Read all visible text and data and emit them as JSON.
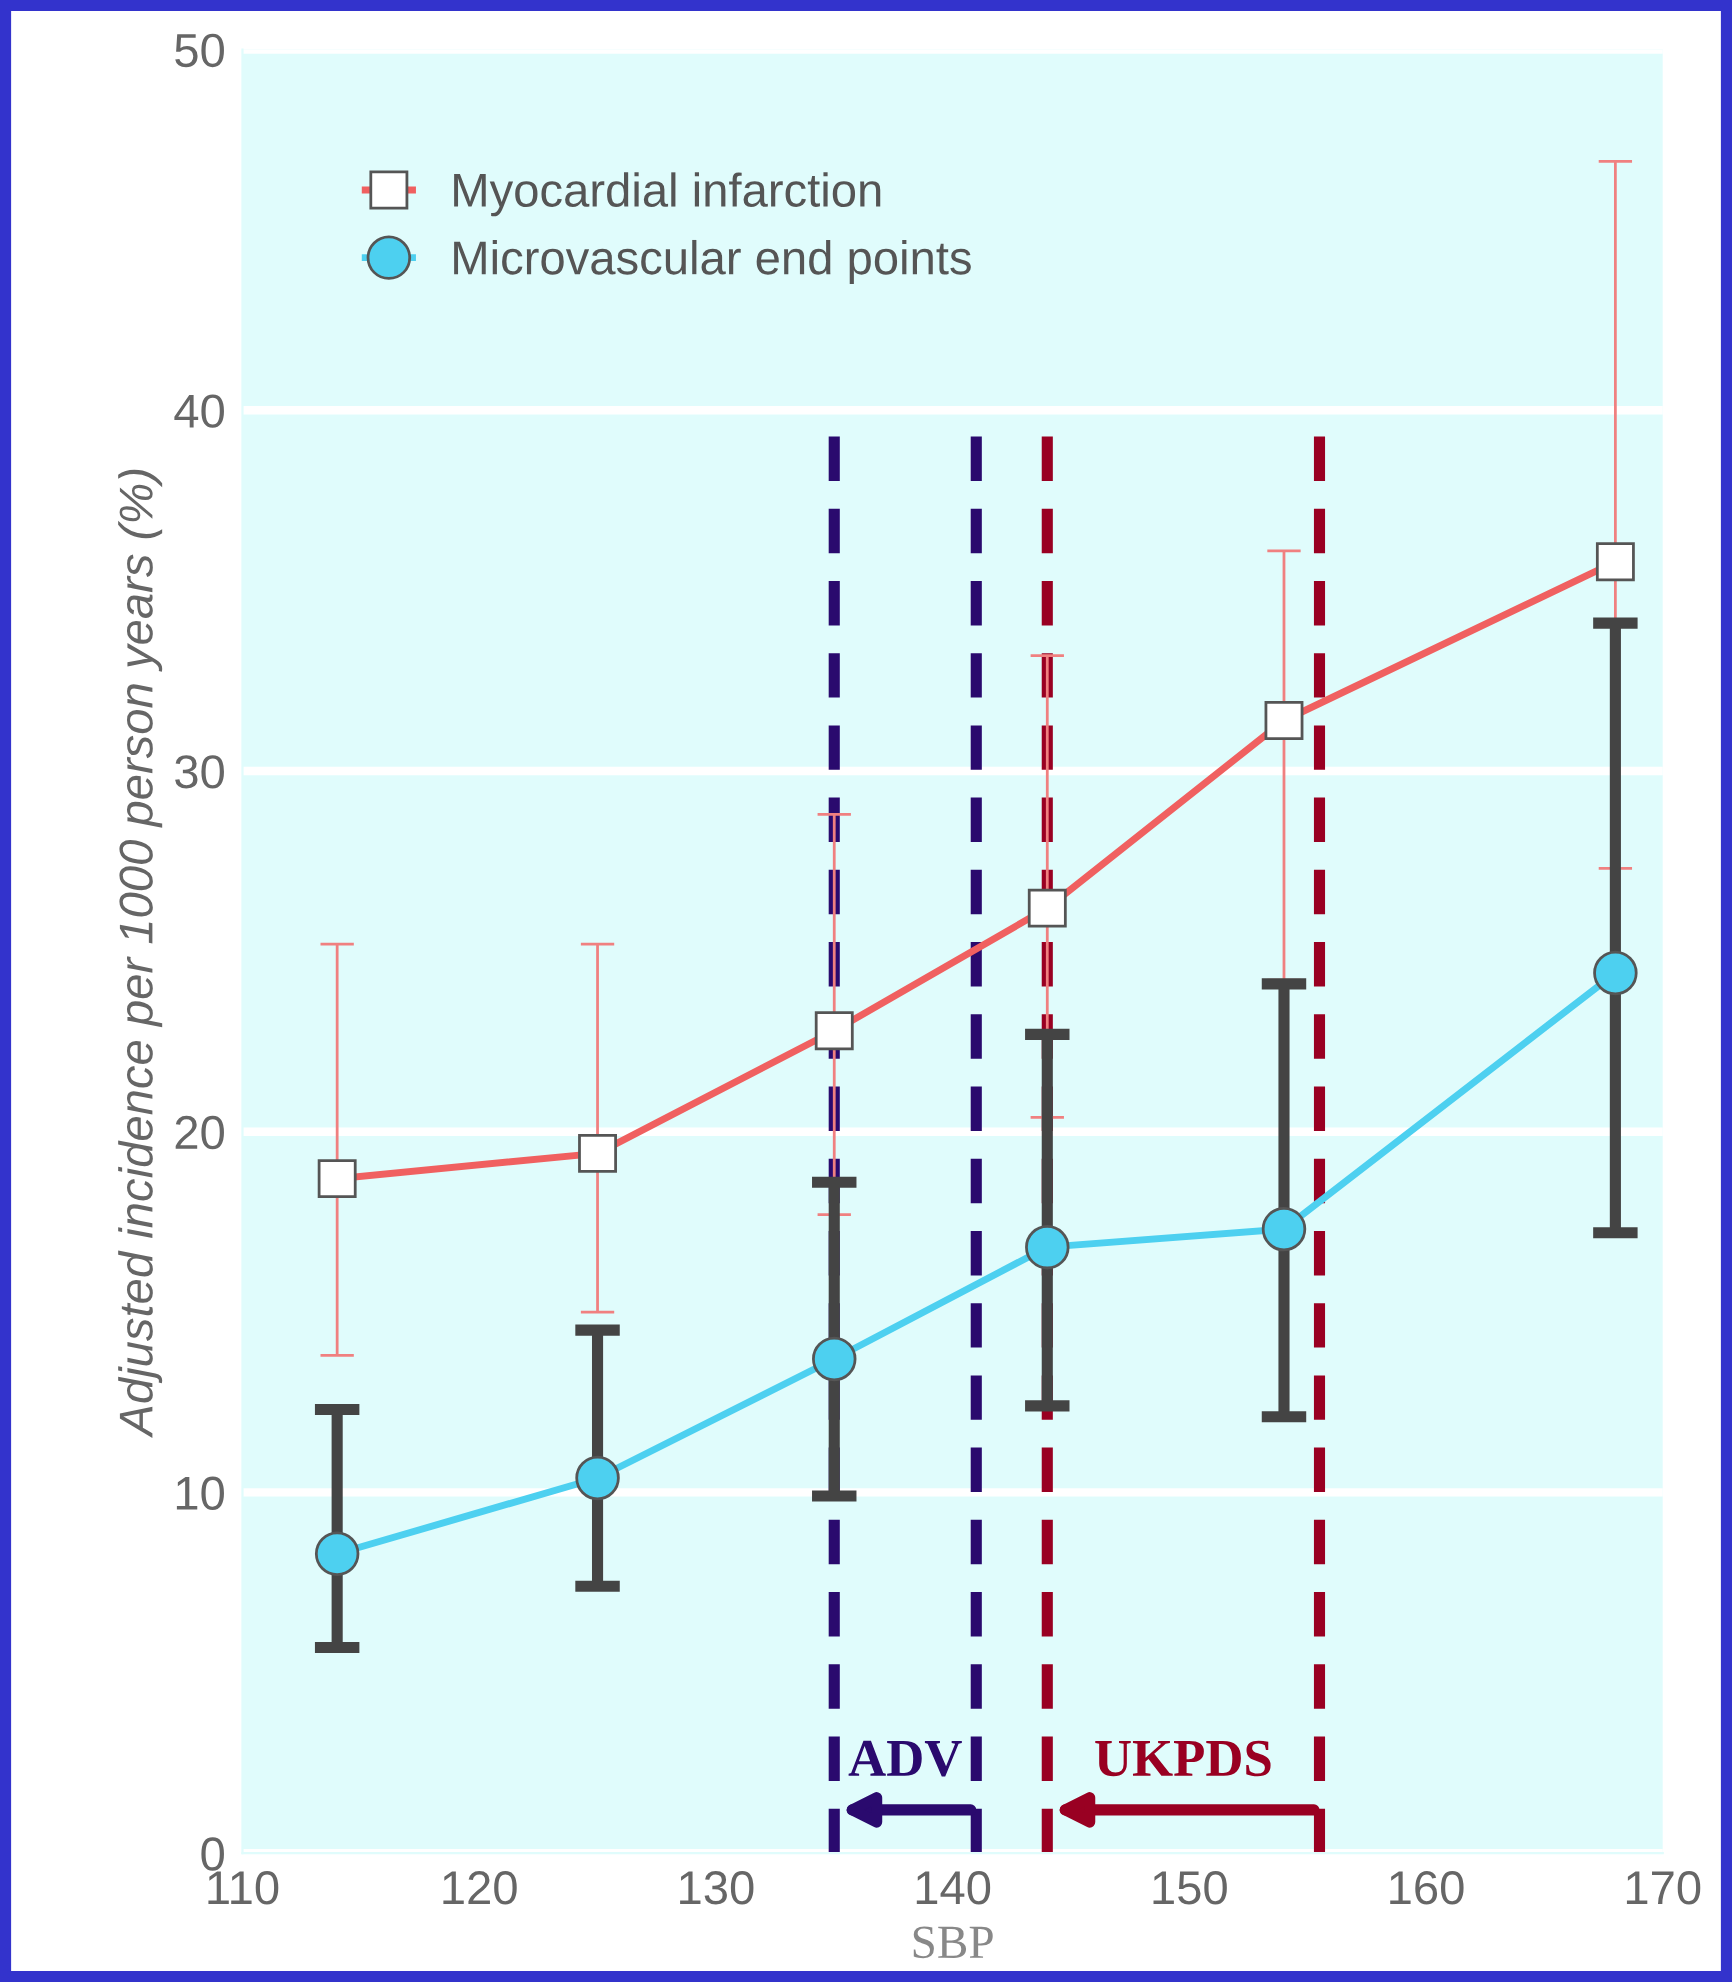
{
  "chart_data": {
    "type": "line",
    "xlabel": "SBP",
    "ylabel": "Adjusted incidence per 1000 person years (%)",
    "x": [
      114,
      125,
      135,
      144,
      154,
      168
    ],
    "series": [
      {
        "name": "Myocardial infarction",
        "color": "#f06060",
        "marker": "square",
        "values": [
          18.7,
          19.4,
          22.8,
          26.2,
          31.4,
          35.8
        ],
        "errors": [
          [
            13.8,
            25.2
          ],
          [
            15.0,
            25.2
          ],
          [
            17.7,
            28.8
          ],
          [
            20.4,
            33.2
          ],
          [
            24.2,
            36.1
          ],
          [
            27.3,
            46.9
          ]
        ]
      },
      {
        "name": "Microvascular end points",
        "color": "#4dd0f0",
        "marker": "circle",
        "values": [
          8.3,
          10.4,
          13.7,
          16.8,
          17.3,
          24.4
        ],
        "errors": [
          [
            5.7,
            12.3
          ],
          [
            7.4,
            14.5
          ],
          [
            9.9,
            18.6
          ],
          [
            12.4,
            22.7
          ],
          [
            12.1,
            24.1
          ],
          [
            17.2,
            34.1
          ]
        ]
      }
    ],
    "xlim": [
      110,
      170
    ],
    "xticks": [
      110,
      120,
      130,
      140,
      150,
      160,
      170
    ],
    "ylim": [
      0,
      50
    ],
    "yticks": [
      0,
      10,
      20,
      30,
      40,
      50
    ],
    "grid": "y",
    "legend": "top left",
    "line_style": "solid",
    "ref_lines": [
      {
        "axis": "x",
        "value": 135,
        "color": "#2a0a6e",
        "line_style": "dashed",
        "label": "ADV"
      },
      {
        "axis": "x",
        "value": 141,
        "color": "#2a0a6e",
        "line_style": "dashed"
      },
      {
        "axis": "x",
        "value": 144,
        "color": "#990022",
        "line_style": "dashed",
        "label": "UKPDS"
      },
      {
        "axis": "x",
        "value": 155.5,
        "color": "#990022",
        "line_style": "dashed"
      }
    ]
  }
}
